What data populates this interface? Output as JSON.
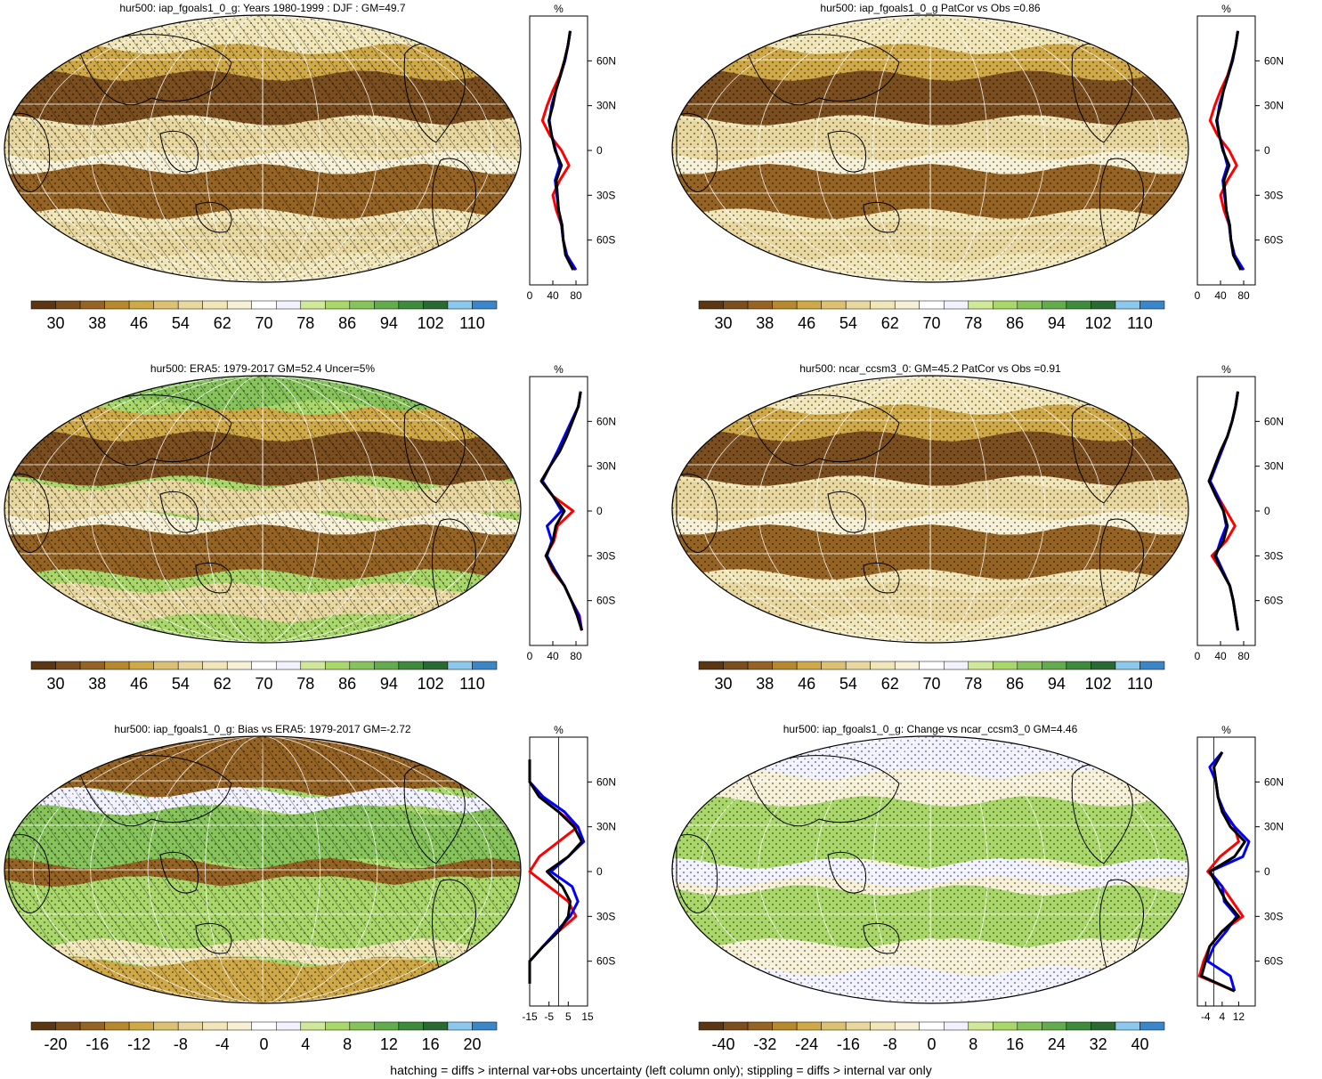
{
  "footer": "hatching = diffs > internal var+obs uncertainty (left column only); stippling = diffs > internal var only",
  "colormaps": {
    "abs": [
      "#5a3612",
      "#7a4e1e",
      "#956324",
      "#b6892f",
      "#cfa948",
      "#dcc172",
      "#e8d79e",
      "#f0e6b8",
      "#f6f0d6",
      "#ffffff",
      "#f2f2ff",
      "#cfe89a",
      "#a9d76a",
      "#86c35a",
      "#63ab4c",
      "#3f8a3c",
      "#2a6a32",
      "#8cc8ec",
      "#3a86c8"
    ],
    "diff": [
      "#5a3612",
      "#7a4e1e",
      "#956324",
      "#b6892f",
      "#cfa948",
      "#dcc172",
      "#e8d79e",
      "#f0e6b8",
      "#f6f0d6",
      "#ffffff",
      "#f2f2ff",
      "#cfe89a",
      "#a9d76a",
      "#86c35a",
      "#63ab4c",
      "#3f8a3c",
      "#2a6a32",
      "#8cc8ec",
      "#3a86c8"
    ]
  },
  "panels": [
    {
      "id": "p1",
      "col": 0,
      "row": 0,
      "title": "hur500: iap_fgoals1_0_g: Years 1980-1999 : DJF : GM=49.7",
      "cmap": "abs",
      "cb_labels": [
        "30",
        "38",
        "46",
        "54",
        "62",
        "70",
        "78",
        "86",
        "94",
        "102",
        "110"
      ],
      "hatch": true
    },
    {
      "id": "p2",
      "col": 1,
      "row": 0,
      "title": "hur500: iap_fgoals1_0_g PatCor vs Obs =0.86",
      "cmap": "abs",
      "cb_labels": [
        "30",
        "38",
        "46",
        "54",
        "62",
        "70",
        "78",
        "86",
        "94",
        "102",
        "110"
      ],
      "hatch": false
    },
    {
      "id": "p3",
      "col": 0,
      "row": 1,
      "title": "hur500: ERA5: 1979-2017 GM=52.4 Uncer=5%",
      "cmap": "abs",
      "cb_labels": [
        "30",
        "38",
        "46",
        "54",
        "62",
        "70",
        "78",
        "86",
        "94",
        "102",
        "110"
      ],
      "hatch": true
    },
    {
      "id": "p4",
      "col": 1,
      "row": 1,
      "title": "hur500: ncar_ccsm3_0: GM=45.2 PatCor vs Obs =0.91",
      "cmap": "abs",
      "cb_labels": [
        "30",
        "38",
        "46",
        "54",
        "62",
        "70",
        "78",
        "86",
        "94",
        "102",
        "110"
      ],
      "hatch": false
    },
    {
      "id": "p5",
      "col": 0,
      "row": 2,
      "title": "hur500: iap_fgoals1_0_g: Bias vs ERA5: 1979-2017 GM=-2.72",
      "cmap": "diff",
      "cb_labels": [
        "-20",
        "-16",
        "-12",
        "-8",
        "-4",
        "0",
        "4",
        "8",
        "12",
        "16",
        "20"
      ],
      "hatch": true
    },
    {
      "id": "p6",
      "col": 1,
      "row": 2,
      "title": "hur500: iap_fgoals1_0_g: Change vs ncar_ccsm3_0 GM=4.46",
      "cmap": "diff",
      "cb_labels": [
        "-40",
        "-32",
        "-24",
        "-16",
        "-8",
        "0",
        "8",
        "16",
        "24",
        "32",
        "40"
      ],
      "hatch": false
    }
  ],
  "chart_data": [
    {
      "type": "line",
      "title": "%",
      "lat_ticks": [
        "60N",
        "30N",
        "0",
        "30S",
        "60S"
      ],
      "x_ticks": [
        "0",
        "40",
        "80"
      ],
      "xlim": [
        0,
        100
      ],
      "lat": [
        80,
        70,
        60,
        50,
        40,
        30,
        20,
        10,
        0,
        -10,
        -20,
        -30,
        -40,
        -50,
        -60,
        -70,
        -80
      ],
      "series": [
        {
          "name": "",
          "color": "black",
          "values": [
            70,
            66,
            60,
            53,
            45,
            40,
            33,
            38,
            44,
            55,
            46,
            48,
            50,
            56,
            58,
            62,
            75
          ]
        },
        {
          "name": "",
          "color": "blue",
          "values": [
            70,
            66,
            61,
            53,
            45,
            38,
            34,
            38,
            45,
            52,
            44,
            47,
            50,
            55,
            58,
            64,
            80
          ]
        },
        {
          "name": "",
          "color": "red",
          "values": [
            70,
            66,
            60,
            52,
            40,
            30,
            22,
            35,
            55,
            68,
            52,
            40,
            46,
            55,
            58,
            64,
            78
          ]
        }
      ]
    },
    {
      "type": "line",
      "title": "%",
      "lat_ticks": [
        "60N",
        "30N",
        "0",
        "30S",
        "60S"
      ],
      "x_ticks": [
        "0",
        "40",
        "80"
      ],
      "xlim": [
        0,
        100
      ],
      "lat": [
        80,
        70,
        60,
        50,
        40,
        30,
        20,
        10,
        0,
        -10,
        -20,
        -30,
        -40,
        -50,
        -60,
        -70,
        -80
      ],
      "series": [
        {
          "name": "",
          "color": "black",
          "values": [
            70,
            66,
            60,
            53,
            45,
            40,
            33,
            38,
            44,
            55,
            46,
            48,
            50,
            56,
            58,
            62,
            75
          ]
        },
        {
          "name": "",
          "color": "blue",
          "values": [
            70,
            66,
            61,
            53,
            45,
            38,
            34,
            38,
            45,
            52,
            44,
            47,
            50,
            55,
            58,
            64,
            80
          ]
        },
        {
          "name": "",
          "color": "red",
          "values": [
            70,
            66,
            60,
            52,
            40,
            30,
            22,
            35,
            55,
            68,
            52,
            40,
            46,
            55,
            58,
            64,
            78
          ]
        }
      ]
    },
    {
      "type": "line",
      "title": "%",
      "lat_ticks": [
        "60N",
        "30N",
        "0",
        "30S",
        "60S"
      ],
      "x_ticks": [
        "0",
        "40",
        "80"
      ],
      "xlim": [
        0,
        100
      ],
      "lat": [
        80,
        70,
        60,
        50,
        40,
        30,
        20,
        10,
        0,
        -10,
        -20,
        -30,
        -40,
        -50,
        -60,
        -70,
        -80
      ],
      "series": [
        {
          "name": "",
          "color": "black",
          "values": [
            88,
            84,
            74,
            64,
            52,
            35,
            20,
            40,
            60,
            45,
            40,
            28,
            42,
            60,
            72,
            82,
            90
          ]
        },
        {
          "name": "",
          "color": "blue",
          "values": [
            88,
            84,
            72,
            60,
            48,
            35,
            22,
            40,
            55,
            30,
            38,
            30,
            44,
            60,
            72,
            85,
            90
          ]
        },
        {
          "name": "",
          "color": "red",
          "values": [
            88,
            84,
            74,
            64,
            52,
            35,
            20,
            40,
            75,
            48,
            42,
            28,
            40,
            60,
            72,
            86,
            90
          ]
        }
      ]
    },
    {
      "type": "line",
      "title": "%",
      "lat_ticks": [
        "60N",
        "30N",
        "0",
        "30S",
        "60S"
      ],
      "x_ticks": [
        "0",
        "40",
        "80"
      ],
      "xlim": [
        0,
        100
      ],
      "lat": [
        80,
        70,
        60,
        50,
        40,
        30,
        20,
        10,
        0,
        -10,
        -20,
        -30,
        -40,
        -50,
        -60,
        -70,
        -80
      ],
      "series": [
        {
          "name": "",
          "color": "black",
          "values": [
            70,
            66,
            60,
            52,
            40,
            30,
            20,
            32,
            45,
            52,
            45,
            30,
            42,
            56,
            62,
            66,
            70
          ]
        },
        {
          "name": "",
          "color": "blue",
          "values": [
            70,
            66,
            60,
            52,
            42,
            32,
            22,
            35,
            45,
            50,
            40,
            32,
            44,
            56,
            62,
            66,
            70
          ]
        },
        {
          "name": "",
          "color": "red",
          "values": [
            70,
            66,
            60,
            52,
            40,
            30,
            22,
            35,
            50,
            65,
            50,
            25,
            42,
            56,
            62,
            66,
            70
          ]
        }
      ]
    },
    {
      "type": "line",
      "title": "%",
      "lat_ticks": [
        "60N",
        "30N",
        "0",
        "30S",
        "60S"
      ],
      "x_ticks": [
        "-15",
        "-5",
        "5",
        "15"
      ],
      "xlim": [
        -15,
        15
      ],
      "lat": [
        75,
        60,
        50,
        40,
        30,
        20,
        10,
        0,
        -10,
        -20,
        -30,
        -40,
        -50,
        -60,
        -75
      ],
      "series": [
        {
          "name": "",
          "color": "black",
          "values": [
            -15,
            -15,
            -10,
            0,
            8,
            12,
            5,
            -6,
            2,
            6,
            5,
            0,
            -8,
            -15,
            -15
          ]
        },
        {
          "name": "",
          "color": "blue",
          "values": [
            -15,
            -15,
            -8,
            3,
            10,
            13,
            5,
            -4,
            7,
            10,
            6,
            -1,
            -8,
            -15,
            -15
          ]
        },
        {
          "name": "",
          "color": "red",
          "values": [
            -15,
            -15,
            -10,
            0,
            10,
            0,
            -10,
            -15,
            -5,
            5,
            9,
            0,
            -8,
            -15,
            -15
          ]
        }
      ]
    },
    {
      "type": "line",
      "title": "%",
      "lat_ticks": [
        "60N",
        "30N",
        "0",
        "30S",
        "60S"
      ],
      "x_ticks": [
        "-4",
        "4",
        "12"
      ],
      "xlim": [
        -8,
        20
      ],
      "lat": [
        80,
        70,
        60,
        50,
        40,
        30,
        20,
        10,
        0,
        -10,
        -20,
        -30,
        -40,
        -50,
        -60,
        -70,
        -80
      ],
      "series": [
        {
          "name": "",
          "color": "black",
          "values": [
            4,
            0,
            1,
            2,
            4,
            8,
            15,
            10,
            -2,
            2,
            6,
            12,
            4,
            -2,
            -4,
            -6,
            10
          ]
        },
        {
          "name": "",
          "color": "blue",
          "values": [
            4,
            -2,
            1,
            2,
            5,
            10,
            17,
            14,
            -2,
            4,
            5,
            11,
            6,
            0,
            -3,
            8,
            10
          ]
        },
        {
          "name": "",
          "color": "red",
          "values": [
            4,
            0,
            1,
            2,
            4,
            10,
            12,
            3,
            -3,
            4,
            9,
            14,
            4,
            -2,
            -5,
            -7,
            10
          ]
        }
      ]
    }
  ]
}
